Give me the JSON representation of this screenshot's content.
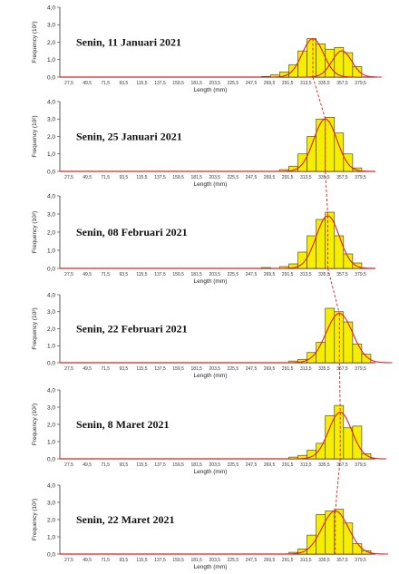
{
  "chart_data": [
    {
      "type": "bar",
      "title": "Senin, 11 Januari 2021",
      "xlabel": "Length (mm)",
      "ylabel": "Frequency (10²)",
      "yticks": [
        "0,0",
        "1,0",
        "2,0",
        "3,0",
        "4,0"
      ],
      "ylim": [
        0,
        4
      ],
      "xticks": [
        "27,5",
        "49,5",
        "71,5",
        "93,5",
        "115,5",
        "137,5",
        "159,5",
        "181,5",
        "203,5",
        "225,5",
        "247,5",
        "269,5",
        "291,5",
        "313,5",
        "335,5",
        "357,5",
        "379,5"
      ],
      "bins": [
        {
          "x": 265.5,
          "v": 0.04
        },
        {
          "x": 276.5,
          "v": 0.12
        },
        {
          "x": 287.5,
          "v": 0.3
        },
        {
          "x": 298.5,
          "v": 0.7
        },
        {
          "x": 309.5,
          "v": 1.5
        },
        {
          "x": 320.5,
          "v": 2.2
        },
        {
          "x": 331.5,
          "v": 1.9
        },
        {
          "x": 342.5,
          "v": 1.6
        },
        {
          "x": 353.5,
          "v": 1.7
        },
        {
          "x": 364.5,
          "v": 1.4
        },
        {
          "x": 375.5,
          "v": 0.6
        }
      ],
      "curves": [
        {
          "mu": 322,
          "sigma": 13,
          "amp": 2.2
        },
        {
          "mu": 357,
          "sigma": 12,
          "amp": 1.5
        }
      ]
    },
    {
      "type": "bar",
      "title": "Senin, 25 Januari 2021",
      "xlabel": "Length (mm)",
      "ylabel": "Frequency (10²)",
      "yticks": [
        "0,0",
        "1,0",
        "2,0",
        "3,0",
        "4,0"
      ],
      "ylim": [
        0,
        4
      ],
      "xticks": [
        "27,5",
        "49,5",
        "71,5",
        "93,5",
        "115,5",
        "137,5",
        "159,5",
        "181,5",
        "203,5",
        "225,5",
        "247,5",
        "269,5",
        "291,5",
        "313,5",
        "335,5",
        "357,5",
        "379,5"
      ],
      "bins": [
        {
          "x": 287.5,
          "v": 0.1
        },
        {
          "x": 298.5,
          "v": 0.3
        },
        {
          "x": 309.5,
          "v": 1.0
        },
        {
          "x": 320.5,
          "v": 2.0
        },
        {
          "x": 331.5,
          "v": 3.0
        },
        {
          "x": 342.5,
          "v": 3.1
        },
        {
          "x": 353.5,
          "v": 2.2
        },
        {
          "x": 364.5,
          "v": 1.0
        },
        {
          "x": 375.5,
          "v": 0.2
        }
      ],
      "curves": [
        {
          "mu": 337,
          "sigma": 14,
          "amp": 3.0
        }
      ]
    },
    {
      "type": "bar",
      "title": "Senin, 08 Februari 2021",
      "xlabel": "Length (mm)",
      "ylabel": "Frequency (10²)",
      "yticks": [
        "0,0",
        "1,0",
        "2,0",
        "3,0",
        "4,0"
      ],
      "ylim": [
        0,
        4
      ],
      "xticks": [
        "27,5",
        "49,5",
        "71,5",
        "93,5",
        "115,5",
        "137,5",
        "159,5",
        "181,5",
        "203,5",
        "225,5",
        "247,5",
        "269,5",
        "291,5",
        "313,5",
        "335,5",
        "357,5",
        "379,5"
      ],
      "bins": [
        {
          "x": 265.5,
          "v": 0.05
        },
        {
          "x": 287.5,
          "v": 0.1
        },
        {
          "x": 298.5,
          "v": 0.25
        },
        {
          "x": 309.5,
          "v": 0.9
        },
        {
          "x": 320.5,
          "v": 1.8
        },
        {
          "x": 331.5,
          "v": 2.7
        },
        {
          "x": 342.5,
          "v": 3.1
        },
        {
          "x": 353.5,
          "v": 1.8
        },
        {
          "x": 364.5,
          "v": 0.8
        },
        {
          "x": 375.5,
          "v": 0.3
        }
      ],
      "curves": [
        {
          "mu": 340,
          "sigma": 14,
          "amp": 2.9
        }
      ]
    },
    {
      "type": "bar",
      "title": "Senin, 22 Februari 2021",
      "xlabel": "Length (mm)",
      "ylabel": "Frequency (10²)",
      "yticks": [
        "0,0",
        "1,0",
        "2,0",
        "3,0",
        "4,0"
      ],
      "ylim": [
        0,
        4
      ],
      "xticks": [
        "27,5",
        "49,5",
        "71,5",
        "93,5",
        "115,5",
        "137,5",
        "159,5",
        "181,5",
        "203,5",
        "225,5",
        "247,5",
        "269,5",
        "291,5",
        "313,5",
        "335,5",
        "357,5",
        "379,5"
      ],
      "bins": [
        {
          "x": 298.5,
          "v": 0.1
        },
        {
          "x": 309.5,
          "v": 0.2
        },
        {
          "x": 320.5,
          "v": 0.6
        },
        {
          "x": 331.5,
          "v": 1.2
        },
        {
          "x": 342.5,
          "v": 3.2
        },
        {
          "x": 353.5,
          "v": 3.0
        },
        {
          "x": 364.5,
          "v": 2.4
        },
        {
          "x": 375.5,
          "v": 1.1
        },
        {
          "x": 386.5,
          "v": 0.5
        }
      ],
      "curves": [
        {
          "mu": 354,
          "sigma": 16,
          "amp": 2.9
        }
      ]
    },
    {
      "type": "bar",
      "title": "Senin, 8 Maret 2021",
      "xlabel": "Length (mm)",
      "ylabel": "Frequency (10²)",
      "yticks": [
        "0,0",
        "1,0",
        "2,0",
        "3,0",
        "4,0"
      ],
      "ylim": [
        0,
        4
      ],
      "xticks": [
        "27,5",
        "49,5",
        "71,5",
        "93,5",
        "115,5",
        "137,5",
        "159,5",
        "181,5",
        "203,5",
        "225,5",
        "247,5",
        "269,5",
        "291,5",
        "313,5",
        "335,5",
        "357,5",
        "379,5"
      ],
      "bins": [
        {
          "x": 298.5,
          "v": 0.1
        },
        {
          "x": 309.5,
          "v": 0.2
        },
        {
          "x": 320.5,
          "v": 0.5
        },
        {
          "x": 331.5,
          "v": 0.9
        },
        {
          "x": 342.5,
          "v": 2.5
        },
        {
          "x": 353.5,
          "v": 3.1
        },
        {
          "x": 364.5,
          "v": 1.8
        },
        {
          "x": 375.5,
          "v": 1.9
        },
        {
          "x": 386.5,
          "v": 0.3
        }
      ],
      "curves": [
        {
          "mu": 355,
          "sigma": 14,
          "amp": 2.7
        }
      ]
    },
    {
      "type": "bar",
      "title": "Senin, 22 Maret 2021",
      "xlabel": "Length (mm)",
      "ylabel": "Frequency (10²)",
      "yticks": [
        "0,0",
        "1,0",
        "2,0",
        "3,0",
        "4,0"
      ],
      "ylim": [
        0,
        4
      ],
      "xticks": [
        "27,5",
        "49,5",
        "71,5",
        "93,5",
        "115,5",
        "137,5",
        "159,5",
        "181,5",
        "203,5",
        "225,5",
        "247,5",
        "269,5",
        "291,5",
        "313,5",
        "335,5",
        "357,5",
        "379,5"
      ],
      "bins": [
        {
          "x": 298.5,
          "v": 0.1
        },
        {
          "x": 309.5,
          "v": 0.3
        },
        {
          "x": 320.5,
          "v": 1.1
        },
        {
          "x": 331.5,
          "v": 2.3
        },
        {
          "x": 342.5,
          "v": 2.5
        },
        {
          "x": 353.5,
          "v": 2.6
        },
        {
          "x": 364.5,
          "v": 1.8
        },
        {
          "x": 375.5,
          "v": 0.6
        },
        {
          "x": 386.5,
          "v": 0.2
        }
      ],
      "curves": [
        {
          "mu": 349,
          "sigma": 16,
          "amp": 2.5
        }
      ]
    }
  ]
}
